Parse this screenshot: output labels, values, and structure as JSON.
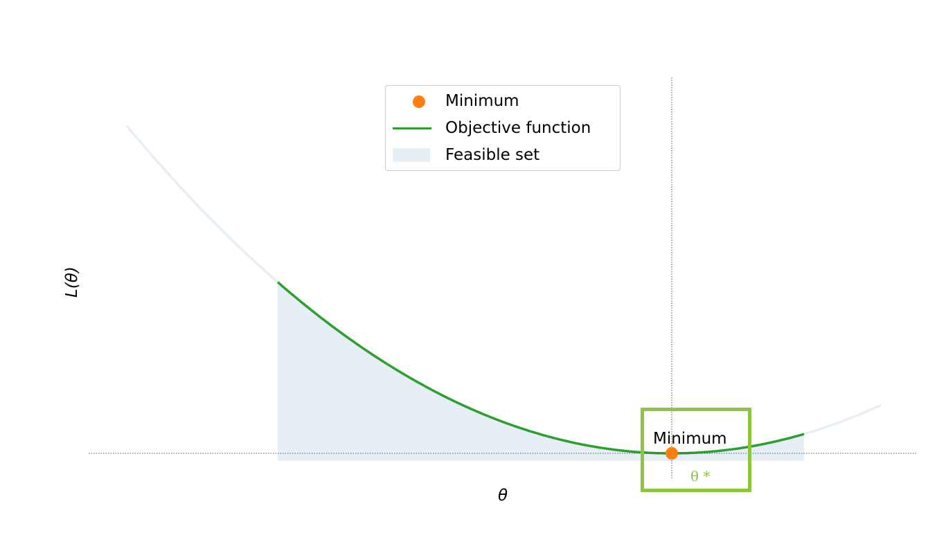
{
  "chart_data": {
    "type": "line",
    "title": "",
    "xlabel": "θ",
    "ylabel": "L(θ)",
    "grid": false,
    "legend_placement": "top-center",
    "legend": [
      {
        "label": "Minimum",
        "kind": "marker",
        "color": "#ff7f0e"
      },
      {
        "label": "Objective function",
        "kind": "line",
        "color": "#2ca02c"
      },
      {
        "label": "Feasible set",
        "kind": "patch",
        "color": "#e6eef6"
      }
    ],
    "series": [
      {
        "name": "Objective function",
        "function": "L(θ) = (θ - θ*)^2",
        "color": "#2ca02c"
      }
    ],
    "feasible_set_color": "#e6eef6",
    "annotation": {
      "text": "Minimum",
      "marker_color": "#ff7f0e"
    },
    "reference_lines": [
      "vertical at θ*",
      "horizontal at L(θ*)"
    ],
    "highlight": {
      "label": "θ *",
      "color": "#8cc63f"
    }
  }
}
